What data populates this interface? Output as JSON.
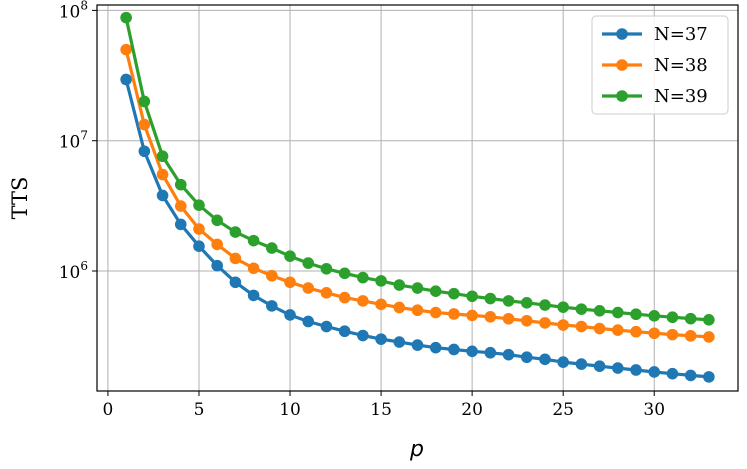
{
  "chart_data": {
    "type": "line",
    "title": "",
    "xlabel": "p",
    "ylabel": "TTS",
    "yscale": "log",
    "xlim": [
      -0.6,
      34.6
    ],
    "ylim": [
      120000,
      110000000
    ],
    "grid": true,
    "legend_position": "top-right",
    "x_ticks": [
      0,
      5,
      10,
      15,
      20,
      25,
      30
    ],
    "x_tick_labels": [
      "0",
      "5",
      "10",
      "15",
      "20",
      "25",
      "30"
    ],
    "y_ticks": [
      1000000,
      10000000,
      100000000
    ],
    "y_tick_labels": [
      {
        "base": "10",
        "exp": "6"
      },
      {
        "base": "10",
        "exp": "7"
      },
      {
        "base": "10",
        "exp": "8"
      }
    ],
    "x": [
      1,
      2,
      3,
      4,
      5,
      6,
      7,
      8,
      9,
      10,
      11,
      12,
      13,
      14,
      15,
      16,
      17,
      18,
      19,
      20,
      21,
      22,
      23,
      24,
      25,
      26,
      27,
      28,
      29,
      30,
      31,
      32,
      33
    ],
    "series": [
      {
        "name": "N=37",
        "color": "#1f77b4",
        "values": [
          29500000,
          8300000,
          3800000,
          2280000,
          1550000,
          1100000,
          820000,
          650000,
          540000,
          460000,
          410000,
          375000,
          345000,
          320000,
          300000,
          285000,
          270000,
          258000,
          250000,
          242000,
          236000,
          228000,
          218000,
          210000,
          200000,
          193000,
          186000,
          180000,
          174000,
          168000,
          163000,
          158000,
          154000
        ]
      },
      {
        "name": "N=38",
        "color": "#ff7f0e",
        "values": [
          50000000,
          13300000,
          5500000,
          3150000,
          2100000,
          1600000,
          1250000,
          1050000,
          920000,
          820000,
          740000,
          680000,
          625000,
          590000,
          555000,
          525000,
          500000,
          480000,
          468000,
          456000,
          445000,
          430000,
          415000,
          400000,
          385000,
          375000,
          362000,
          352000,
          342000,
          333000,
          325000,
          318000,
          312000
        ]
      },
      {
        "name": "N=39",
        "color": "#2ca02c",
        "values": [
          88000000,
          20000000,
          7600000,
          4600000,
          3200000,
          2450000,
          1990000,
          1710000,
          1500000,
          1300000,
          1150000,
          1040000,
          960000,
          890000,
          840000,
          780000,
          740000,
          700000,
          670000,
          640000,
          615000,
          590000,
          570000,
          548000,
          528000,
          510000,
          495000,
          480000,
          466000,
          453000,
          442000,
          431000,
          422000
        ]
      }
    ]
  }
}
